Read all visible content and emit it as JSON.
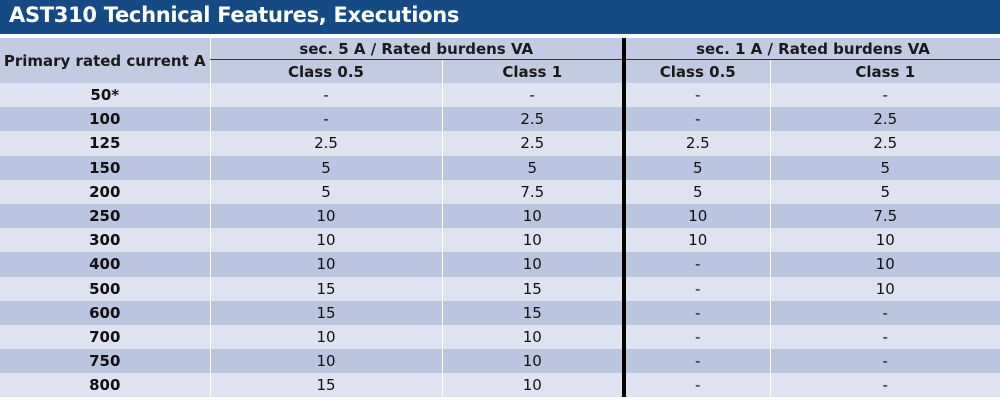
{
  "title": "AST310 Technical Features, Executions",
  "headers": {
    "primary": "Primary rated current A",
    "group_5a": "sec. 5 A / Rated burdens VA",
    "group_1a": "sec. 1 A / Rated burdens VA",
    "class_05": "Class 0.5",
    "class_1": "Class 1"
  },
  "rows": [
    {
      "current": "50*",
      "c5_05": "-",
      "c5_1": "-",
      "c1_05": "-",
      "c1_1": "-"
    },
    {
      "current": "100",
      "c5_05": "-",
      "c5_1": "2.5",
      "c1_05": "-",
      "c1_1": "2.5"
    },
    {
      "current": "125",
      "c5_05": "2.5",
      "c5_1": "2.5",
      "c1_05": "2.5",
      "c1_1": "2.5"
    },
    {
      "current": "150",
      "c5_05": "5",
      "c5_1": "5",
      "c1_05": "5",
      "c1_1": "5"
    },
    {
      "current": "200",
      "c5_05": "5",
      "c5_1": "7.5",
      "c1_05": "5",
      "c1_1": "5"
    },
    {
      "current": "250",
      "c5_05": "10",
      "c5_1": "10",
      "c1_05": "10",
      "c1_1": "7.5"
    },
    {
      "current": "300",
      "c5_05": "10",
      "c5_1": "10",
      "c1_05": "10",
      "c1_1": "10"
    },
    {
      "current": "400",
      "c5_05": "10",
      "c5_1": "10",
      "c1_05": "-",
      "c1_1": "10"
    },
    {
      "current": "500",
      "c5_05": "15",
      "c5_1": "15",
      "c1_05": "-",
      "c1_1": "10"
    },
    {
      "current": "600",
      "c5_05": "15",
      "c5_1": "15",
      "c1_05": "-",
      "c1_1": "-"
    },
    {
      "current": "700",
      "c5_05": "10",
      "c5_1": "10",
      "c1_05": "-",
      "c1_1": "-"
    },
    {
      "current": "750",
      "c5_05": "10",
      "c5_1": "10",
      "c1_05": "-",
      "c1_1": "-"
    },
    {
      "current": "800",
      "c5_05": "15",
      "c5_1": "10",
      "c1_05": "-",
      "c1_1": "-"
    }
  ],
  "colors": {
    "title_bg": "#154a85",
    "header_bg": "#c3cbe2",
    "row_light": "#dfe3f1",
    "row_dark": "#bcc5e0",
    "separator": "#000000"
  }
}
